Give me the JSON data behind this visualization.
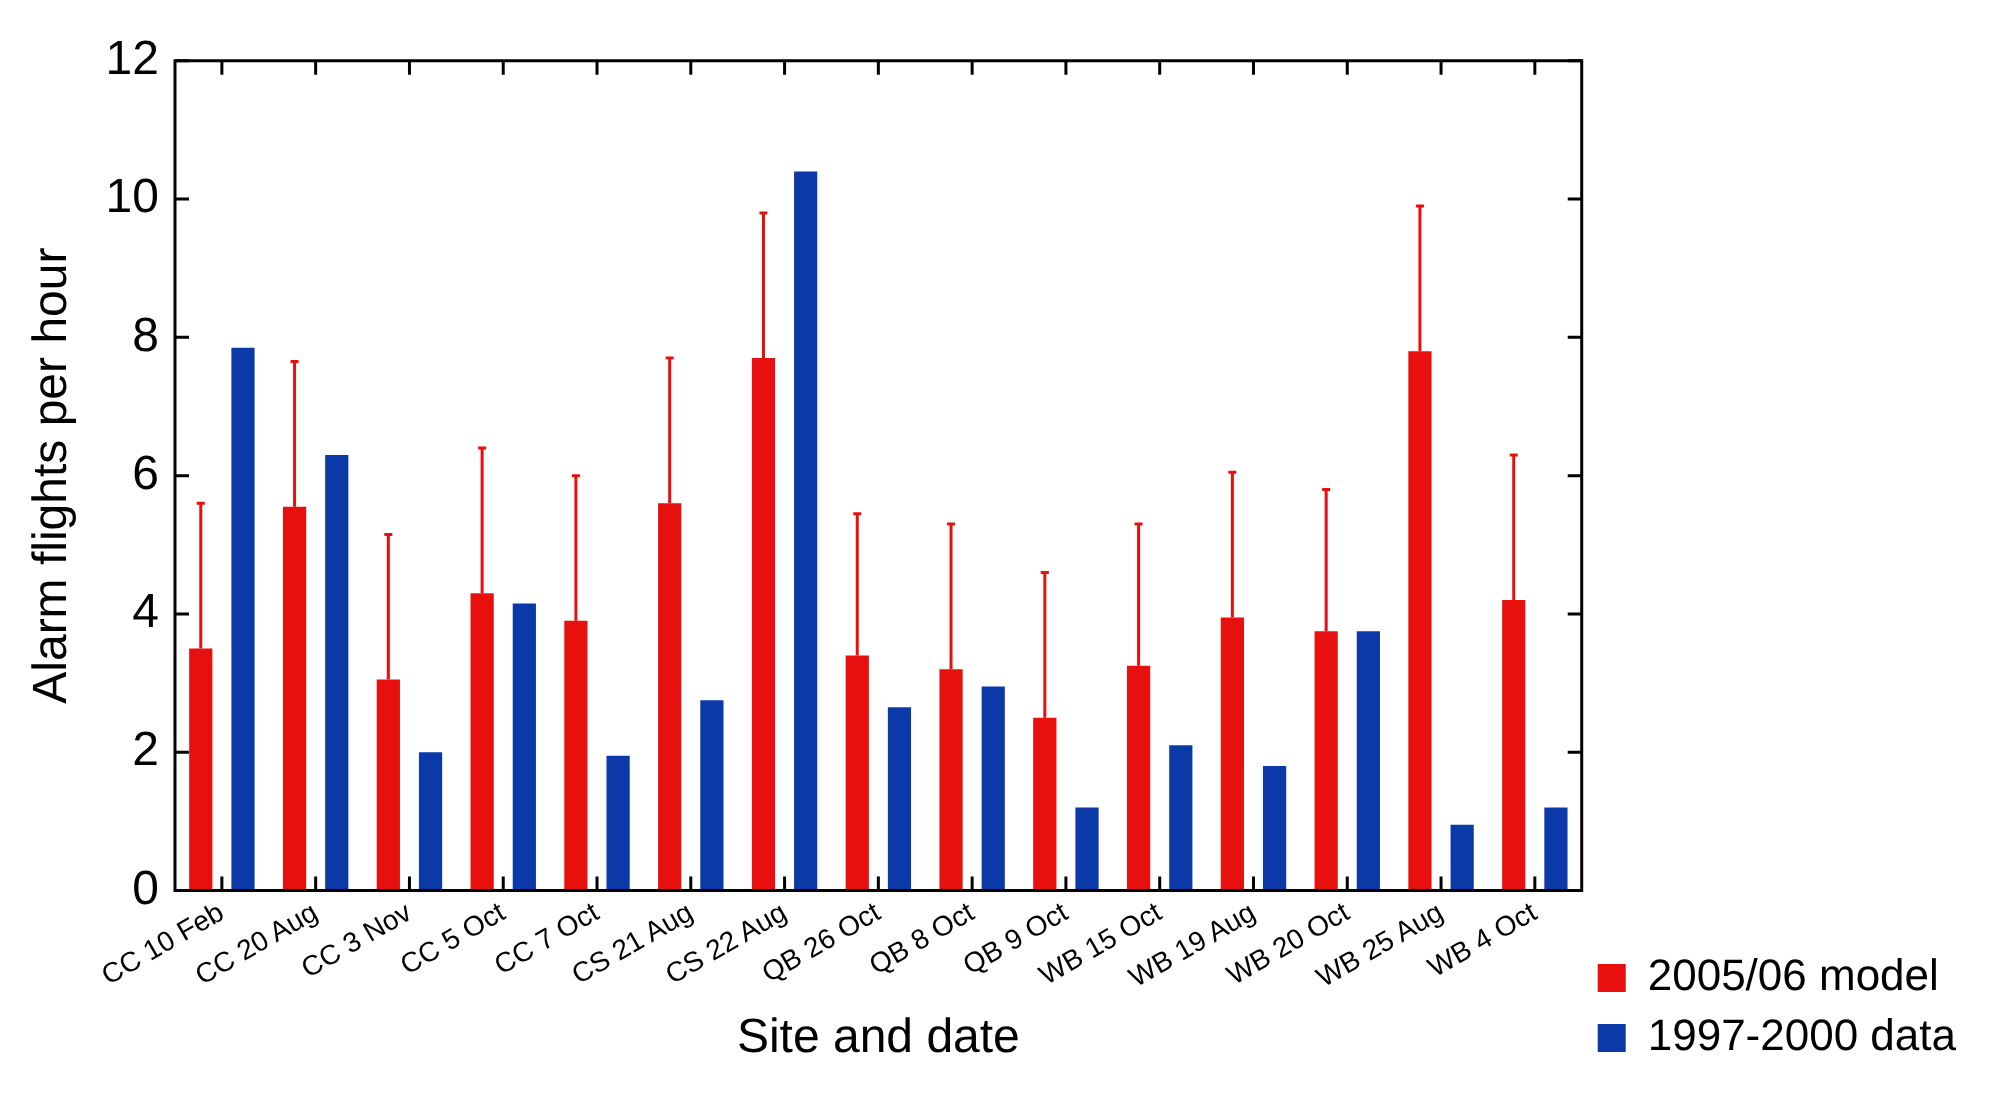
{
  "chart_data": {
    "type": "bar",
    "xlabel": "Site and date",
    "ylabel": "Alarm flights per hour",
    "categories": [
      "CC 10 Feb",
      "CC 20 Aug",
      "CC 3 Nov",
      "CC 5 Oct",
      "CC 7 Oct",
      "CS 21 Aug",
      "CS 22 Aug",
      "QB 26 Oct",
      "QB 8 Oct",
      "QB 9 Oct",
      "WB 15 Oct",
      "WB 19 Aug",
      "WB 20 Oct",
      "WB 25 Aug",
      "WB 4 Oct"
    ],
    "series": [
      {
        "name": "2005/06 model",
        "color": "#e8100e",
        "values": [
          3.5,
          5.55,
          3.05,
          4.3,
          3.9,
          5.6,
          7.7,
          3.4,
          3.2,
          2.5,
          3.25,
          3.95,
          3.75,
          7.8,
          4.2
        ],
        "errors": [
          [
            3.5,
            5.6
          ],
          [
            5.55,
            7.65
          ],
          [
            3.05,
            5.15
          ],
          [
            4.3,
            6.4
          ],
          [
            3.9,
            6.0
          ],
          [
            5.6,
            7.7
          ],
          [
            7.7,
            9.8
          ],
          [
            3.4,
            5.45
          ],
          [
            3.2,
            5.3
          ],
          [
            2.5,
            4.6
          ],
          [
            3.25,
            5.3
          ],
          [
            3.95,
            6.05
          ],
          [
            3.75,
            5.8
          ],
          [
            7.8,
            9.9
          ],
          [
            4.2,
            6.3
          ]
        ]
      },
      {
        "name": "1997-2000 data",
        "color": "#0b3aa8",
        "values": [
          7.85,
          6.3,
          2.0,
          4.15,
          1.95,
          2.75,
          10.4,
          2.65,
          2.95,
          1.2,
          2.1,
          1.8,
          3.75,
          0.95,
          1.2
        ]
      }
    ],
    "ylim": [
      0,
      12
    ],
    "yticks": [
      0,
      2,
      4,
      6,
      8,
      10,
      12
    ],
    "grid": false,
    "legend": "bottom right"
  }
}
